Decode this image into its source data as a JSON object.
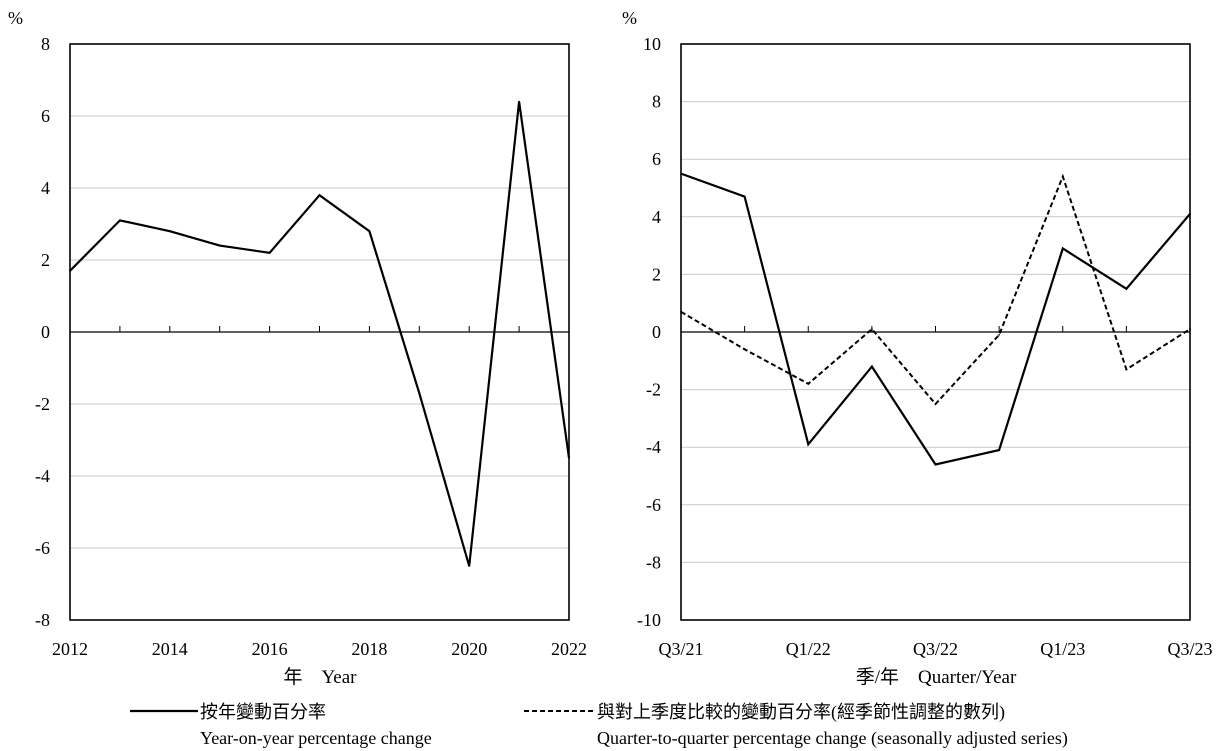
{
  "chart_data": [
    {
      "type": "line",
      "y_unit": "%",
      "xlabel": "年　Year",
      "ylim": [
        -8,
        8
      ],
      "y_ticks": [
        "8",
        "6",
        "4",
        "2",
        "0",
        "-2",
        "-4",
        "-6",
        "-8"
      ],
      "x_ticks": [
        "2012",
        "2014",
        "2016",
        "2018",
        "2020",
        "2022"
      ],
      "grid": true,
      "series": [
        {
          "name": "按年變動百分率",
          "style": "solid",
          "x": [
            2012,
            2013,
            2014,
            2015,
            2016,
            2017,
            2018,
            2019,
            2020,
            2021,
            2022
          ],
          "values": [
            1.7,
            3.1,
            2.8,
            2.4,
            2.2,
            3.8,
            2.8,
            -1.7,
            -6.5,
            6.4,
            -3.5
          ]
        }
      ]
    },
    {
      "type": "line",
      "y_unit": "%",
      "xlabel": "季/年　Quarter/Year",
      "ylim": [
        -10,
        10
      ],
      "y_ticks": [
        "10",
        "8",
        "6",
        "4",
        "2",
        "0",
        "-2",
        "-4",
        "-6",
        "-8",
        "-10"
      ],
      "categories": [
        "Q3/21",
        "Q4/21",
        "Q1/22",
        "Q2/22",
        "Q3/22",
        "Q4/22",
        "Q1/23",
        "Q2/23",
        "Q3/23"
      ],
      "x_tick_labels": [
        "Q3/21",
        "Q1/22",
        "Q3/22",
        "Q1/23",
        "Q3/23"
      ],
      "grid": true,
      "series": [
        {
          "name": "按年變動百分率",
          "style": "solid",
          "values": [
            5.5,
            4.7,
            -3.9,
            -1.2,
            -4.6,
            -4.1,
            2.9,
            1.5,
            4.1
          ]
        },
        {
          "name": "與對上季度比較的變動百分率(經季節性調整的數列)",
          "style": "dashed",
          "values": [
            0.7,
            -0.6,
            -1.8,
            0.1,
            -2.5,
            -0.1,
            5.4,
            -1.3,
            0.1
          ]
        }
      ]
    }
  ],
  "legend": {
    "solid_zh": "按年變動百分率",
    "solid_en": "Year-on-year percentage change",
    "dashed_zh": "與對上季度比較的變動百分率(經季節性調整的數列)",
    "dashed_en": "Quarter-to-quarter percentage change (seasonally adjusted series)"
  }
}
